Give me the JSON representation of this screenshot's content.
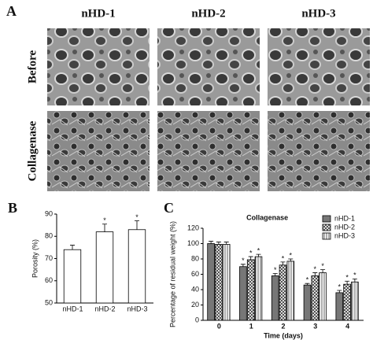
{
  "figure": {
    "panel_labels": [
      "A",
      "B",
      "C"
    ],
    "column_headers": [
      "nHD-1",
      "nHD-2",
      "nHD-3"
    ],
    "row_labels": [
      "Before",
      "Collagenase"
    ]
  },
  "chart_data": [
    {
      "type": "bar",
      "categories": [
        "nHD-1",
        "nHD-2",
        "nHD-3"
      ],
      "values": [
        74,
        82,
        83
      ],
      "errors": [
        2,
        3.5,
        4
      ],
      "significance": [
        null,
        "*",
        "*"
      ],
      "color": "#ffffff",
      "y_label": "Porosity (%)",
      "ylim": [
        50,
        90
      ],
      "yticks": [
        50,
        60,
        70,
        80,
        90
      ]
    },
    {
      "type": "bar",
      "title": "Collagenase",
      "x_label": "Time (days)",
      "y_label": "Percentage of residual weight (%)",
      "categories": [
        "0",
        "1",
        "2",
        "3",
        "4"
      ],
      "legend": "top-right",
      "series": [
        {
          "name": "nHD-1",
          "color": "#777777",
          "fill": "solid",
          "values": [
            100,
            70,
            58,
            46,
            36
          ],
          "errors": [
            3,
            3,
            3,
            2,
            3
          ],
          "significance": [
            null,
            "*",
            "*",
            "*",
            "*"
          ]
        },
        {
          "name": "nHD-2",
          "color": "#333333",
          "fill": "crosshatch",
          "values": [
            99,
            79,
            72,
            58,
            47
          ],
          "errors": [
            3,
            4,
            4,
            4,
            4
          ],
          "significance": [
            null,
            "*",
            "*",
            "*",
            "*"
          ]
        },
        {
          "name": "nHD-3",
          "color": "#333333",
          "fill": "stripes",
          "values": [
            99,
            83,
            77,
            62,
            50
          ],
          "errors": [
            3,
            3,
            3,
            4,
            4
          ],
          "significance": [
            null,
            "*",
            "*",
            "*",
            "*"
          ]
        }
      ],
      "ylim": [
        0,
        120
      ],
      "yticks": [
        0,
        20,
        40,
        60,
        80,
        100,
        120
      ]
    }
  ]
}
